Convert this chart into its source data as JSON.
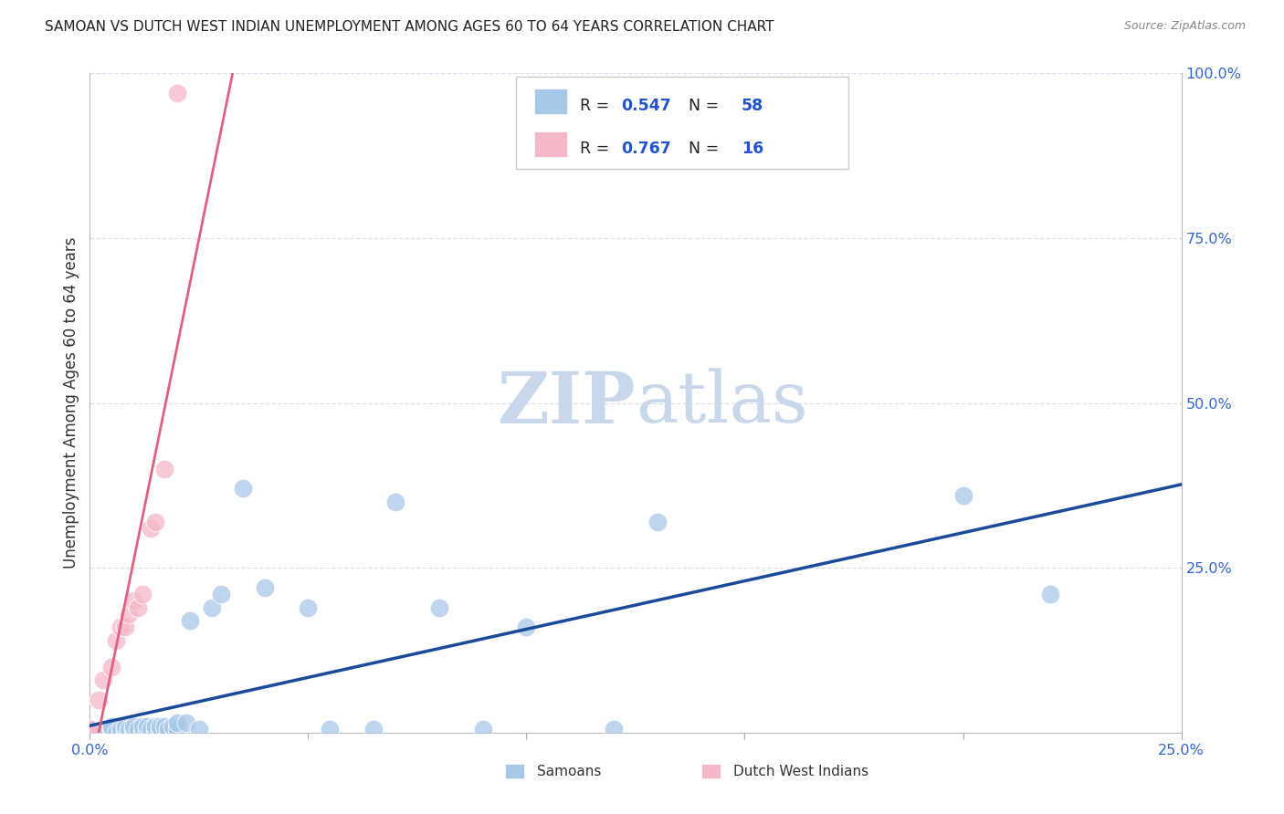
{
  "title": "SAMOAN VS DUTCH WEST INDIAN UNEMPLOYMENT AMONG AGES 60 TO 64 YEARS CORRELATION CHART",
  "source": "Source: ZipAtlas.com",
  "ylabel": "Unemployment Among Ages 60 to 64 years",
  "xlim": [
    0.0,
    0.25
  ],
  "ylim": [
    0.0,
    1.0
  ],
  "samoan_R": 0.547,
  "samoan_N": 58,
  "dutch_R": 0.767,
  "dutch_N": 16,
  "samoan_color": "#a8c8e8",
  "dutch_color": "#f4b8c8",
  "samoan_line_color": "#1a4a9a",
  "dutch_line_color": "#e06080",
  "legend_R_color": "#2255cc",
  "legend_N_color": "#2255cc",
  "title_color": "#222222",
  "source_color": "#888888",
  "axis_label_color": "#333333",
  "tick_color": "#3366cc",
  "grid_color": "#ddddee",
  "watermark_color": "#c8d8ea",
  "background_color": "#ffffff",
  "samoans_x": [
    0.0,
    0.0,
    0.0,
    0.0,
    0.0,
    0.002,
    0.003,
    0.003,
    0.004,
    0.004,
    0.005,
    0.005,
    0.005,
    0.005,
    0.006,
    0.007,
    0.007,
    0.008,
    0.008,
    0.008,
    0.009,
    0.009,
    0.01,
    0.01,
    0.01,
    0.011,
    0.012,
    0.012,
    0.013,
    0.013,
    0.014,
    0.015,
    0.015,
    0.016,
    0.016,
    0.017,
    0.018,
    0.019,
    0.02,
    0.02,
    0.022,
    0.023,
    0.025,
    0.028,
    0.03,
    0.035,
    0.04,
    0.05,
    0.055,
    0.065,
    0.07,
    0.08,
    0.09,
    0.1,
    0.12,
    0.13,
    0.2,
    0.22
  ],
  "samoans_y": [
    0.0,
    0.0,
    0.0,
    0.0,
    0.005,
    0.0,
    0.0,
    0.005,
    0.0,
    0.005,
    0.0,
    0.005,
    0.005,
    0.01,
    0.0,
    0.0,
    0.005,
    0.0,
    0.005,
    0.01,
    0.0,
    0.005,
    0.0,
    0.005,
    0.01,
    0.005,
    0.0,
    0.01,
    0.005,
    0.01,
    0.005,
    0.0,
    0.01,
    0.005,
    0.01,
    0.01,
    0.005,
    0.01,
    0.005,
    0.015,
    0.015,
    0.17,
    0.005,
    0.19,
    0.21,
    0.37,
    0.22,
    0.19,
    0.005,
    0.005,
    0.35,
    0.19,
    0.005,
    0.16,
    0.005,
    0.32,
    0.36,
    0.21
  ],
  "dutch_x": [
    0.0,
    0.0,
    0.002,
    0.003,
    0.005,
    0.006,
    0.007,
    0.008,
    0.009,
    0.01,
    0.011,
    0.012,
    0.014,
    0.015,
    0.017,
    0.02
  ],
  "dutch_y": [
    0.0,
    0.005,
    0.05,
    0.08,
    0.1,
    0.14,
    0.16,
    0.16,
    0.18,
    0.2,
    0.19,
    0.21,
    0.31,
    0.32,
    0.4,
    0.97
  ]
}
